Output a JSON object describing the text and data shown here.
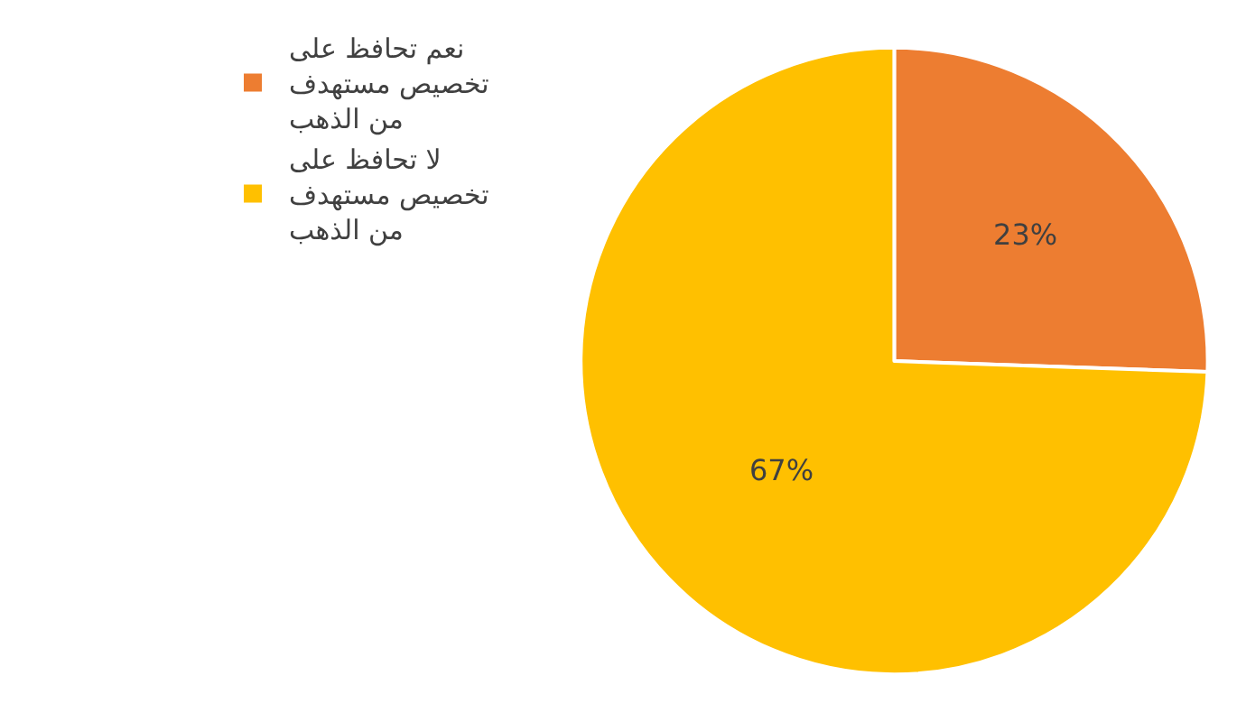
{
  "chart_data": {
    "type": "pie",
    "categories": [
      "نعم تحافظ على تخصيص مستهدف من الذهب",
      "لا تحافظ على تخصيص مستهدف من الذهب"
    ],
    "values": [
      23,
      67
    ],
    "colors": [
      "#ed7d31",
      "#ffc000"
    ],
    "value_labels": [
      "23%",
      "67%"
    ],
    "legend": "top left"
  }
}
